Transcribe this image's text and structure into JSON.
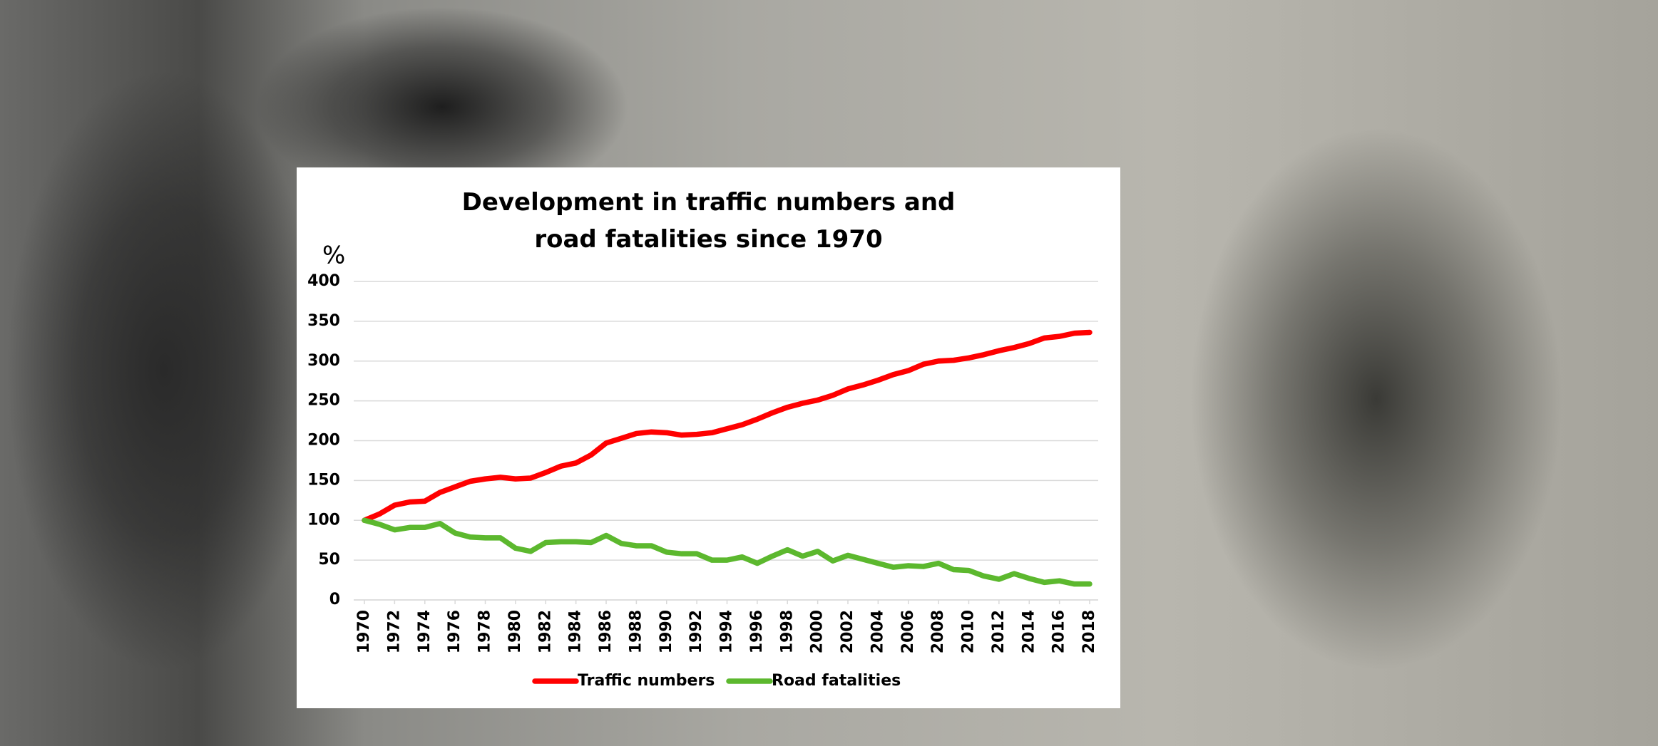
{
  "chart_data": {
    "type": "line",
    "title": "Development in traffic numbers and road fatalities since 1970",
    "ylabel": "%",
    "x": [
      1970,
      1971,
      1972,
      1973,
      1974,
      1975,
      1976,
      1977,
      1978,
      1979,
      1980,
      1981,
      1982,
      1983,
      1984,
      1985,
      1986,
      1987,
      1988,
      1989,
      1990,
      1991,
      1992,
      1993,
      1994,
      1995,
      1996,
      1997,
      1998,
      1999,
      2000,
      2001,
      2002,
      2003,
      2004,
      2005,
      2006,
      2007,
      2008,
      2009,
      2010,
      2011,
      2012,
      2013,
      2014,
      2015,
      2016,
      2017,
      2018
    ],
    "xlim": [
      1970,
      2018
    ],
    "xticks": [
      1970,
      1972,
      1974,
      1976,
      1978,
      1980,
      1982,
      1984,
      1986,
      1988,
      1990,
      1992,
      1994,
      1996,
      1998,
      2000,
      2002,
      2004,
      2006,
      2008,
      2010,
      2012,
      2014,
      2016,
      2018
    ],
    "ylim": [
      0,
      400
    ],
    "yticks": [
      0,
      50,
      100,
      150,
      200,
      250,
      300,
      350,
      400
    ],
    "grid": true,
    "legend": "bottom",
    "series": [
      {
        "name": "Traffic numbers",
        "color": "#ff0000",
        "values": [
          100,
          108,
          119,
          123,
          124,
          135,
          142,
          149,
          152,
          154,
          152,
          153,
          160,
          168,
          172,
          182,
          197,
          203,
          209,
          211,
          210,
          207,
          208,
          210,
          215,
          220,
          227,
          235,
          242,
          247,
          251,
          257,
          265,
          270,
          276,
          283,
          288,
          296,
          300,
          301,
          304,
          308,
          313,
          317,
          322,
          329,
          331,
          335,
          336
        ]
      },
      {
        "name": "Road fatalities",
        "color": "#5cb82e",
        "values": [
          100,
          95,
          88,
          91,
          91,
          96,
          84,
          79,
          78,
          78,
          65,
          61,
          72,
          73,
          73,
          72,
          81,
          71,
          68,
          68,
          60,
          58,
          58,
          50,
          50,
          54,
          46,
          55,
          63,
          55,
          61,
          49,
          56,
          51,
          46,
          41,
          43,
          42,
          46,
          38,
          37,
          30,
          26,
          33,
          27,
          22,
          24,
          20,
          20
        ]
      }
    ]
  }
}
